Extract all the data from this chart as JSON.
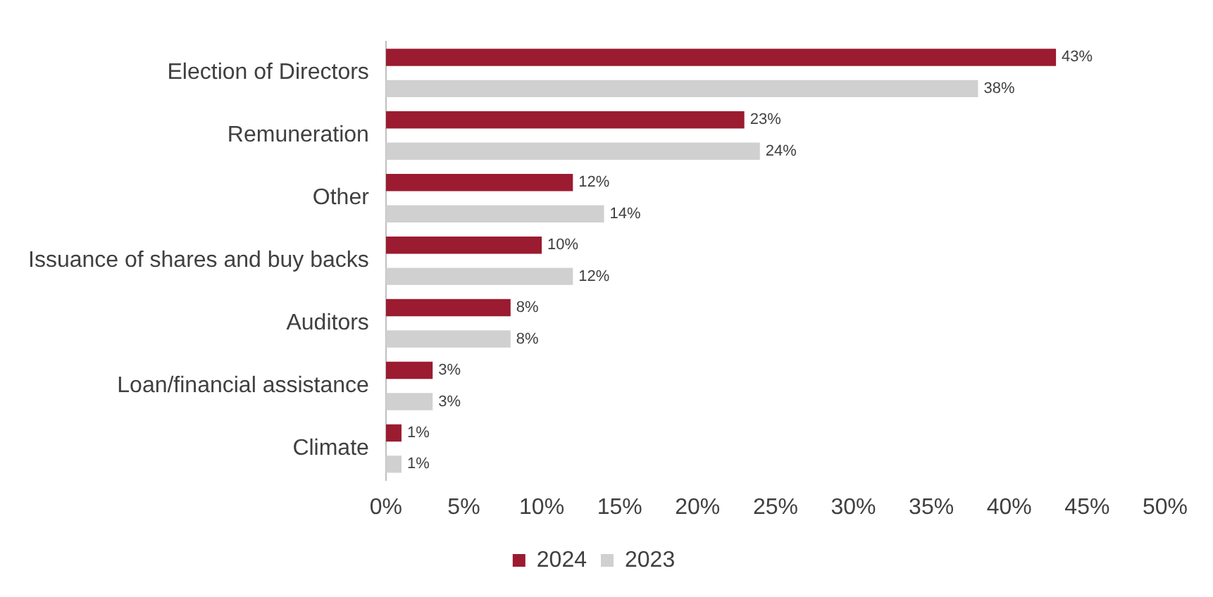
{
  "chart_data": {
    "type": "bar",
    "orientation": "horizontal",
    "categories": [
      "Election of Directors",
      "Remuneration",
      "Other",
      "Issuance of shares and buy backs",
      "Auditors",
      "Loan/financial assistance",
      "Climate"
    ],
    "series": [
      {
        "name": "2024",
        "color": "#9b1b30",
        "values": [
          43,
          23,
          12,
          10,
          8,
          3,
          1
        ],
        "value_labels": [
          "43%",
          "23%",
          "12%",
          "10%",
          "8%",
          "3%",
          "1%"
        ]
      },
      {
        "name": "2023",
        "color": "#d0d0d0",
        "values": [
          38,
          24,
          14,
          12,
          8,
          3,
          1
        ],
        "value_labels": [
          "38%",
          "24%",
          "14%",
          "12%",
          "8%",
          "3%",
          "1%"
        ]
      }
    ],
    "xlim": [
      0,
      50
    ],
    "xticks": [
      {
        "value": 0,
        "label": "0%"
      },
      {
        "value": 5,
        "label": "5%"
      },
      {
        "value": 10,
        "label": "10%"
      },
      {
        "value": 15,
        "label": "15%"
      },
      {
        "value": 20,
        "label": "20%"
      },
      {
        "value": 25,
        "label": "25%"
      },
      {
        "value": 30,
        "label": "30%"
      },
      {
        "value": 35,
        "label": "35%"
      },
      {
        "value": 40,
        "label": "40%"
      },
      {
        "value": 45,
        "label": "45%"
      },
      {
        "value": 50,
        "label": "50%"
      }
    ],
    "grid": false,
    "legend": "bottom"
  }
}
